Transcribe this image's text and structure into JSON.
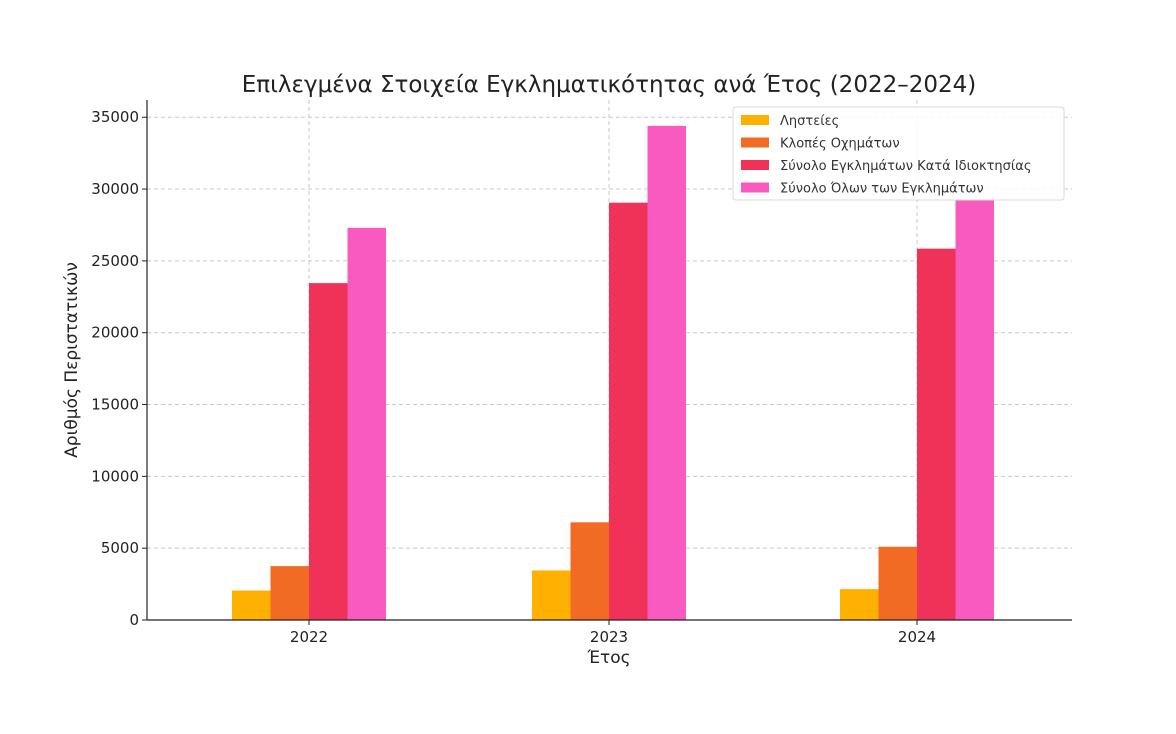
{
  "chart_data": {
    "type": "bar",
    "title": "Επιλεγμένα Στοιχεία Εγκληματικότητας ανά Έτος (2022–2024)",
    "xlabel": "Έτος",
    "ylabel": "Αριθμός Περιστατικών",
    "categories": [
      "2022",
      "2023",
      "2024"
    ],
    "ylim": [
      0,
      36200
    ],
    "yticks": [
      0,
      5000,
      10000,
      15000,
      20000,
      25000,
      30000,
      35000
    ],
    "grid": true,
    "legend_position": "top-right",
    "series": [
      {
        "name": "Ληστείες",
        "color": "#FFB000",
        "values": [
          2050,
          3450,
          2150
        ]
      },
      {
        "name": "Κλοπές Οχημάτων",
        "color": "#F26B25",
        "values": [
          3750,
          6800,
          5100
        ]
      },
      {
        "name": "Σύνολο Εγκλημάτων Κατά Ιδιοκτησίας",
        "color": "#F03158",
        "values": [
          23450,
          29050,
          25850
        ]
      },
      {
        "name": "Σύνολο Όλων των Εγκλημάτων",
        "color": "#F85AC0",
        "values": [
          27300,
          34400,
          29200
        ]
      }
    ]
  }
}
